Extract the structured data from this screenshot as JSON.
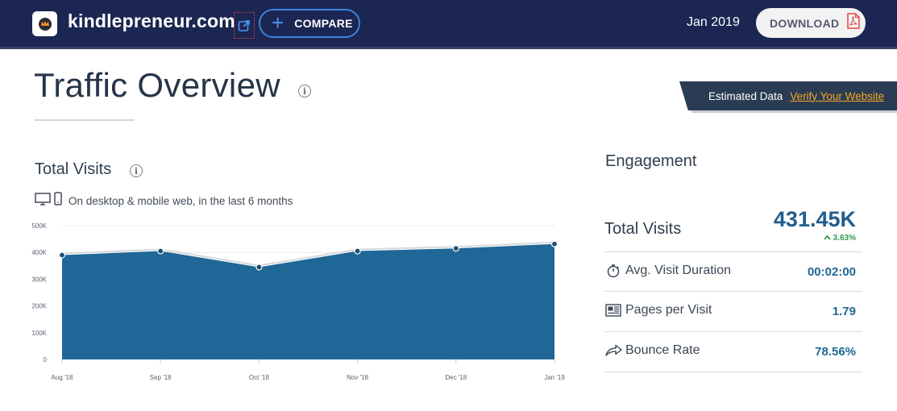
{
  "header": {
    "site": "kindlepreneur.com",
    "compare_label": "COMPARE",
    "date": "Jan 2019",
    "download_label": "DOWNLOAD"
  },
  "title": {
    "text": "Traffic Overview",
    "estimated_label": "Estimated Data",
    "verify_link": "Verify Your Website"
  },
  "total_visits": {
    "title": "Total Visits",
    "device_text": "On desktop & mobile web, in the last 6 months"
  },
  "chart_data": {
    "type": "area",
    "categories": [
      "Aug '18",
      "Sep '18",
      "Oct '18",
      "Nov '18",
      "Dec '18",
      "Jan '19"
    ],
    "values": [
      390000,
      405000,
      345000,
      405000,
      415000,
      431450
    ],
    "ylim": [
      0,
      500000
    ],
    "yticks": [
      0,
      100000,
      200000,
      300000,
      400000,
      500000
    ],
    "ytick_labels": [
      "0",
      "100K",
      "200K",
      "300K",
      "400K",
      "500K"
    ],
    "grid": true,
    "colors": {
      "area": "#1f6796",
      "line": "#d6d9de",
      "point": "#1b4f73"
    }
  },
  "engagement": {
    "title": "Engagement",
    "total_visits_label": "Total Visits",
    "total_visits_value": "431.45K",
    "total_visits_change": "3.63%",
    "metrics": [
      {
        "label": "Avg. Visit Duration",
        "value": "00:02:00",
        "icon": "stopwatch-icon"
      },
      {
        "label": "Pages per Visit",
        "value": "1.79",
        "icon": "pages-icon"
      },
      {
        "label": "Bounce Rate",
        "value": "78.56%",
        "icon": "bounce-arrow-icon"
      }
    ]
  }
}
